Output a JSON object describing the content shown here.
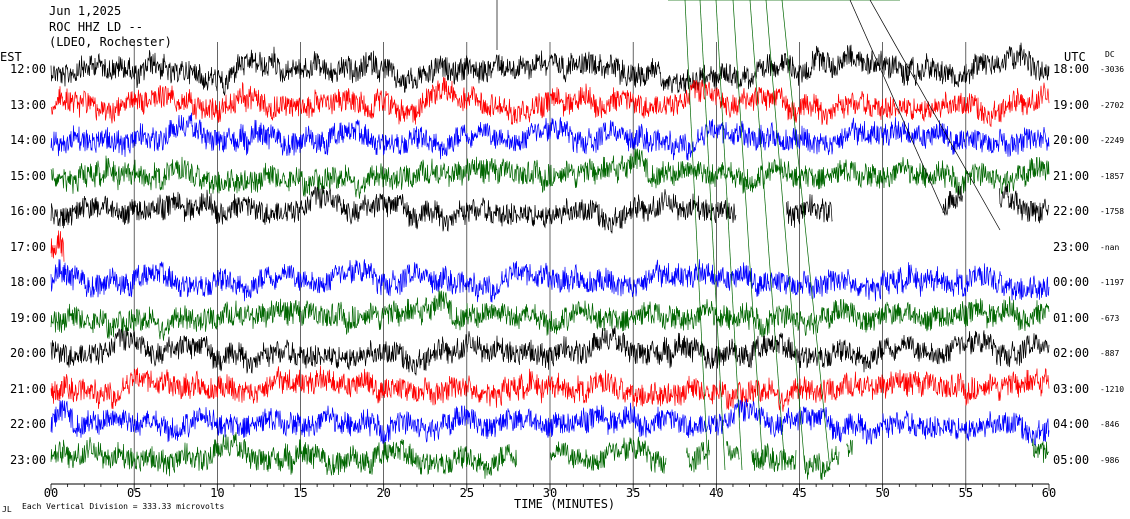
{
  "header": {
    "date": "Jun 1,2025",
    "station": "ROC HHZ LD --",
    "location": "(LDEO, Rochester)"
  },
  "left_tz": "EST",
  "right_tz": "UTC",
  "dc_header": "DC",
  "footer_note": "Each Vertical Division = 333.33 microvolts",
  "footer_mark": "JL",
  "chart_data": {
    "type": "line",
    "title": "",
    "xlabel": "TIME (MINUTES)",
    "ylabel": "",
    "xlim": [
      0,
      60
    ],
    "x_ticks": [
      "00",
      "05",
      "10",
      "15",
      "20",
      "25",
      "30",
      "35",
      "40",
      "45",
      "50",
      "55",
      "60"
    ],
    "grid": true,
    "rows": [
      {
        "est": "12:00",
        "utc": "18:00",
        "dc": "-3036",
        "color": "#000000",
        "gaps": []
      },
      {
        "est": "13:00",
        "utc": "19:00",
        "dc": "-2702",
        "color": "#ff0000",
        "gaps": []
      },
      {
        "est": "14:00",
        "utc": "20:00",
        "dc": "-2249",
        "color": "#0000ff",
        "gaps": []
      },
      {
        "est": "15:00",
        "utc": "21:00",
        "dc": "-1857",
        "color": "#006600",
        "gaps": []
      },
      {
        "est": "16:00",
        "utc": "22:00",
        "dc": "-1758",
        "color": "#000000",
        "gaps": [
          [
            41.2,
            44.2
          ],
          [
            47,
            53.6
          ],
          [
            54.8,
            57
          ]
        ]
      },
      {
        "est": "17:00",
        "utc": "23:00",
        "dc": "-nan",
        "color": "#ff0000",
        "gaps": [
          [
            0.8,
            60
          ]
        ]
      },
      {
        "est": "18:00",
        "utc": "00:00",
        "dc": "-1197",
        "color": "#0000ff",
        "gaps": []
      },
      {
        "est": "19:00",
        "utc": "01:00",
        "dc": "-673",
        "color": "#006600",
        "gaps": []
      },
      {
        "est": "20:00",
        "utc": "02:00",
        "dc": "-887",
        "color": "#000000",
        "gaps": []
      },
      {
        "est": "21:00",
        "utc": "03:00",
        "dc": "-1210",
        "color": "#ff0000",
        "gaps": []
      },
      {
        "est": "22:00",
        "utc": "04:00",
        "dc": "-846",
        "color": "#0000ff",
        "gaps": []
      },
      {
        "est": "23:00",
        "utc": "05:00",
        "dc": "-986",
        "color": "#006600",
        "gaps": [
          [
            28,
            30
          ],
          [
            37,
            38.2
          ],
          [
            39.6,
            40.6
          ],
          [
            41.4,
            42.1
          ],
          [
            44.8,
            45.3
          ],
          [
            47.4,
            47.8
          ],
          [
            48.2,
            59
          ]
        ]
      }
    ]
  }
}
